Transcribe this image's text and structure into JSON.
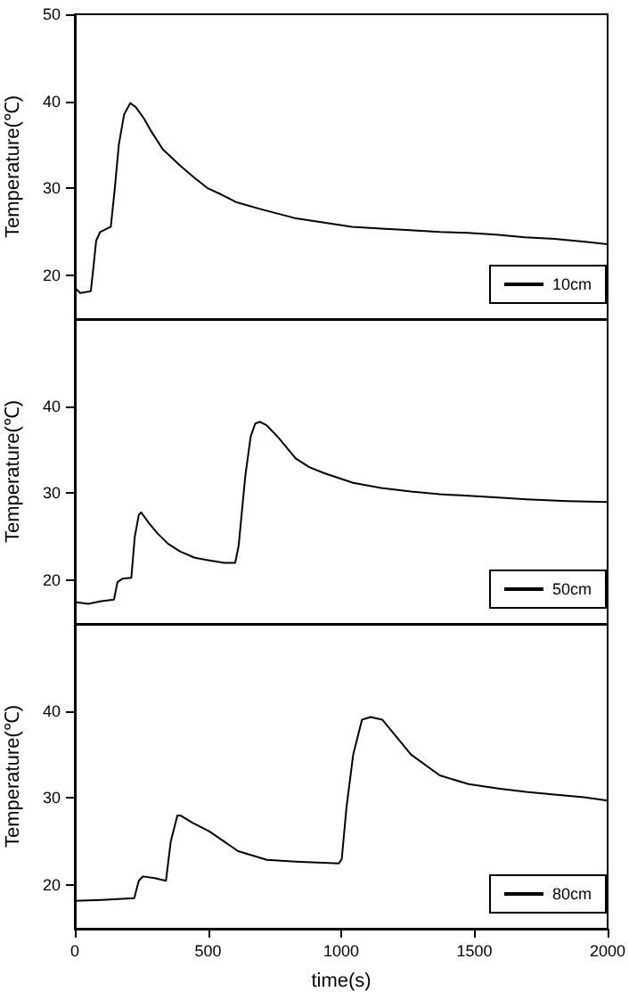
{
  "chart_data": [
    {
      "type": "line",
      "ylabel": "Temperature(℃)",
      "xlim": [
        0,
        2000
      ],
      "ylim": [
        15,
        50
      ],
      "yticks": [
        20,
        30,
        40,
        50
      ],
      "tick_labels": "y",
      "legend": "bottom right",
      "marker": "none",
      "line_style": "solid",
      "grid": false,
      "series": [
        {
          "name": "10cm",
          "color": "#000000",
          "x": [
            0,
            20,
            60,
            70,
            80,
            95,
            135,
            150,
            165,
            185,
            208,
            230,
            260,
            288,
            330,
            396,
            450,
            500,
            550,
            608,
            700,
            825,
            930,
            1040,
            1150,
            1258,
            1370,
            1474,
            1580,
            1690,
            1800,
            1907,
            2000
          ],
          "values": [
            18.6,
            18,
            18.2,
            21,
            24,
            25,
            25.6,
            30,
            35,
            38.5,
            39.8,
            39.3,
            38,
            36.5,
            34.5,
            32.6,
            31.2,
            30,
            29.3,
            28.4,
            27.6,
            26.6,
            26.1,
            25.6,
            25.4,
            25.2,
            25,
            24.9,
            24.7,
            24.4,
            24.2,
            23.9,
            23.6
          ]
        }
      ]
    },
    {
      "type": "line",
      "ylabel": "Temperature(℃)",
      "xlim": [
        0,
        2000
      ],
      "ylim": [
        15,
        50
      ],
      "yticks": [
        20,
        30,
        40
      ],
      "tick_labels": "y",
      "legend": "bottom right",
      "marker": "none",
      "line_style": "solid",
      "grid": false,
      "series": [
        {
          "name": "50cm",
          "color": "#000000",
          "x": [
            0,
            50,
            100,
            147,
            160,
            180,
            212,
            225,
            240,
            249,
            280,
            310,
            350,
            396,
            450,
            504,
            560,
            602,
            615,
            640,
            660,
            677,
            695,
            720,
            764,
            829,
            880,
            937,
            1045,
            1150,
            1262,
            1370,
            1478,
            1590,
            1695,
            1850,
            2000
          ],
          "values": [
            17.5,
            17.3,
            17.6,
            17.8,
            19.8,
            20.2,
            20.3,
            25,
            27.5,
            27.8,
            26.5,
            25.4,
            24.2,
            23.3,
            22.6,
            22.3,
            22,
            22,
            24,
            32,
            36.5,
            38,
            38.2,
            37.8,
            36.4,
            34,
            33,
            32.3,
            31.2,
            30.6,
            30.2,
            29.9,
            29.7,
            29.5,
            29.3,
            29.1,
            29
          ]
        }
      ]
    },
    {
      "type": "line",
      "xlabel": "time(s)",
      "ylabel": "Temperature(℃)",
      "xlim": [
        0,
        2000
      ],
      "ylim": [
        15,
        50
      ],
      "xticks": [
        0,
        500,
        1000,
        1500,
        2000
      ],
      "yticks": [
        20,
        30,
        40
      ],
      "legend": "bottom right",
      "marker": "none",
      "line_style": "solid",
      "grid": false,
      "series": [
        {
          "name": "80cm",
          "color": "#000000",
          "x": [
            0,
            100,
            223,
            240,
            255,
            300,
            342,
            360,
            385,
            396,
            440,
            504,
            613,
            721,
            829,
            991,
            1002,
            1020,
            1045,
            1078,
            1110,
            1154,
            1200,
            1262,
            1370,
            1478,
            1590,
            1695,
            1800,
            1911,
            2000
          ],
          "values": [
            18.2,
            18.3,
            18.5,
            20.5,
            21,
            20.8,
            20.5,
            25,
            28,
            28,
            27.2,
            26.2,
            23.9,
            22.9,
            22.7,
            22.5,
            23,
            29,
            35,
            39,
            39.3,
            39,
            37.3,
            35,
            32.6,
            31.6,
            31.1,
            30.7,
            30.4,
            30.1,
            29.7
          ]
        }
      ]
    }
  ]
}
